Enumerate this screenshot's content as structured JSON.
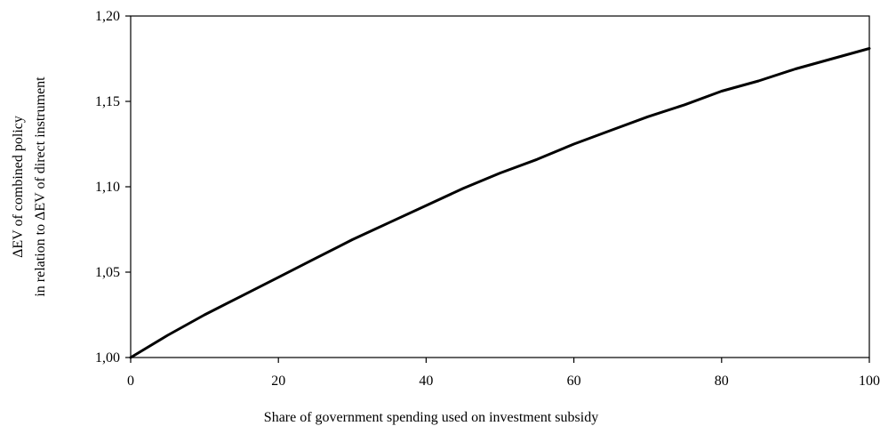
{
  "chart_data": {
    "type": "line",
    "title": "",
    "xlabel": "Share of government spending used on investment subsidy",
    "ylabel_line1": "ΔEV of combined policy",
    "ylabel_line2": "in relation to  ΔEV of direct instrument",
    "xlim": [
      0,
      100
    ],
    "ylim": [
      1.0,
      1.2
    ],
    "x_ticks": [
      0,
      20,
      40,
      60,
      80,
      100
    ],
    "x_tick_labels": [
      "0",
      "20",
      "40",
      "60",
      "80",
      "100"
    ],
    "y_ticks": [
      1.0,
      1.05,
      1.1,
      1.15,
      1.2
    ],
    "y_tick_labels": [
      "1,00",
      "1,05",
      "1,10",
      "1,15",
      "1,20"
    ],
    "grid": false,
    "line_color": "#000000",
    "series": [
      {
        "x": [
          0,
          5,
          10,
          15,
          20,
          25,
          30,
          35,
          40,
          45,
          50,
          55,
          60,
          65,
          70,
          75,
          80,
          85,
          90,
          95,
          100
        ],
        "y": [
          1.0,
          1.013,
          1.025,
          1.036,
          1.047,
          1.058,
          1.069,
          1.079,
          1.089,
          1.099,
          1.108,
          1.116,
          1.125,
          1.133,
          1.141,
          1.148,
          1.156,
          1.162,
          1.169,
          1.175,
          1.181
        ]
      }
    ]
  }
}
